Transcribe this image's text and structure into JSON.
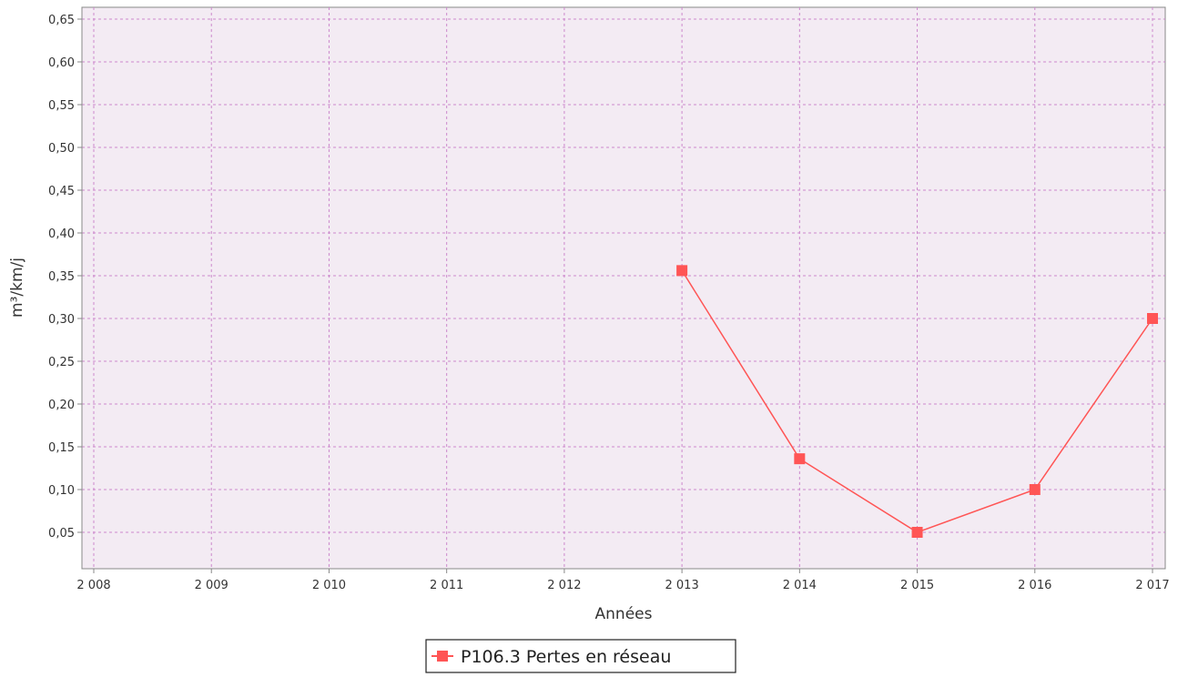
{
  "chart_data": {
    "type": "line",
    "title": "",
    "xlabel": "Années",
    "ylabel": "m³/km/j",
    "x_ticks": [
      "2 008",
      "2 009",
      "2 010",
      "2 011",
      "2 012",
      "2 013",
      "2 014",
      "2 015",
      "2 016",
      "2 017"
    ],
    "y_ticks": [
      "0,05",
      "0,10",
      "0,15",
      "0,20",
      "0,25",
      "0,30",
      "0,35",
      "0,40",
      "0,45",
      "0,50",
      "0,55",
      "0,60",
      "0,65"
    ],
    "xlim": [
      2008,
      2017
    ],
    "ylim": [
      0.0,
      0.65
    ],
    "grid": true,
    "legend_position": "bottom",
    "series": [
      {
        "name": "P106.3 Pertes en réseau",
        "color": "#ff5555",
        "marker": "square",
        "x": [
          2013,
          2014,
          2015,
          2016,
          2017
        ],
        "y": [
          0.356,
          0.136,
          0.05,
          0.1,
          0.3
        ]
      }
    ]
  },
  "colors": {
    "plot_background": "#f3ebf3",
    "grid": "#cc88cc",
    "axis": "#888888",
    "series": "#ff5555"
  }
}
